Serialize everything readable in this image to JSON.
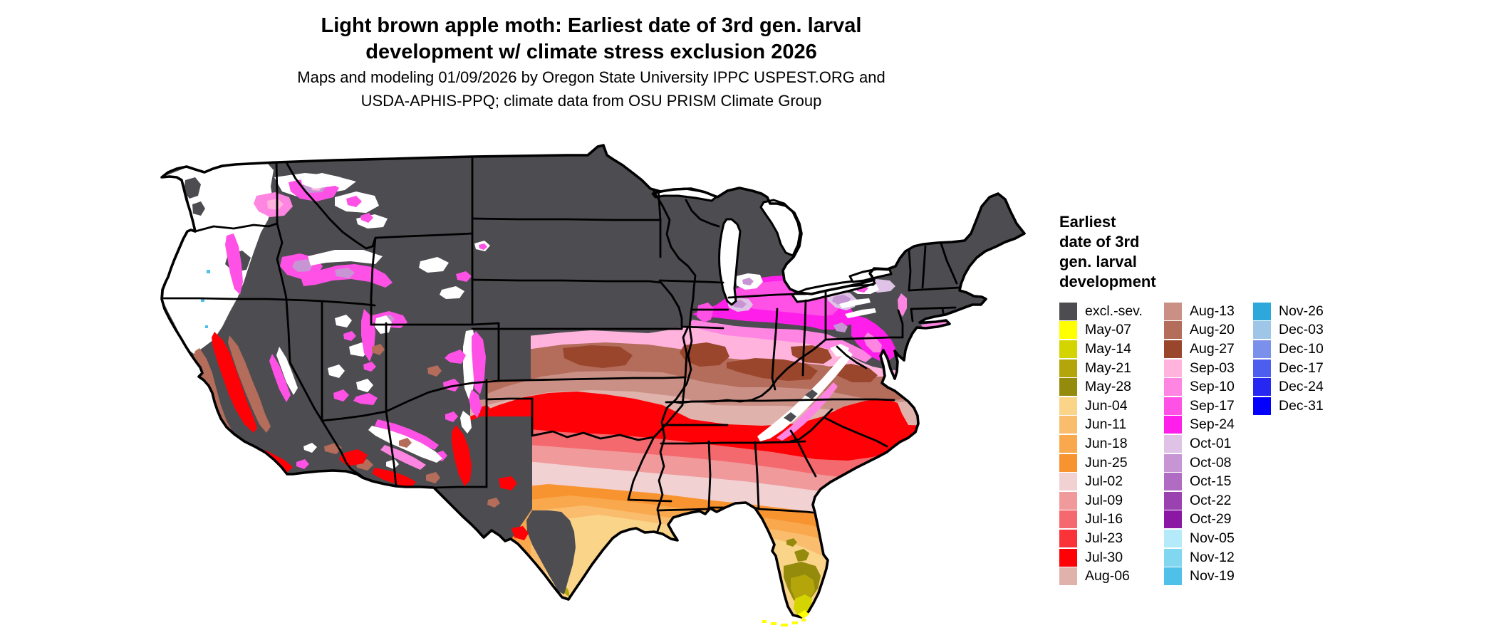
{
  "title": {
    "line1": "Light brown apple moth: Earliest date of 3rd gen. larval",
    "line2": "development w/ climate stress exclusion 2026"
  },
  "subtitle": {
    "line1": "Maps and modeling 01/09/2026 by Oregon State University IPPC USPEST.ORG and",
    "line2": "USDA-APHIS-PPQ; climate data from OSU PRISM Climate Group"
  },
  "legend": {
    "title_lines": [
      "Earliest",
      "date of 3rd",
      "gen. larval",
      "development"
    ],
    "columns": [
      [
        {
          "label": "excl.-sev.",
          "color": "#4D4D51"
        },
        {
          "label": "May-07",
          "color": "#FFFF00"
        },
        {
          "label": "May-14",
          "color": "#D4D400"
        },
        {
          "label": "May-21",
          "color": "#B3A50A"
        },
        {
          "label": "May-28",
          "color": "#948A0C"
        },
        {
          "label": "Jun-04",
          "color": "#FAD489"
        },
        {
          "label": "Jun-11",
          "color": "#FABD6E"
        },
        {
          "label": "Jun-18",
          "color": "#F9A84E"
        },
        {
          "label": "Jun-25",
          "color": "#F89430"
        },
        {
          "label": "Jul-02",
          "color": "#F2D1D2"
        },
        {
          "label": "Jul-09",
          "color": "#F09A9C"
        },
        {
          "label": "Jul-16",
          "color": "#F4696D"
        },
        {
          "label": "Jul-23",
          "color": "#F93338"
        },
        {
          "label": "Jul-30",
          "color": "#FE0005"
        },
        {
          "label": "Aug-06",
          "color": "#DFB2AB"
        }
      ],
      [
        {
          "label": "Aug-13",
          "color": "#CA9086"
        },
        {
          "label": "Aug-20",
          "color": "#B46C5B"
        },
        {
          "label": "Aug-27",
          "color": "#9A462D"
        },
        {
          "label": "Sep-03",
          "color": "#FFB3DD"
        },
        {
          "label": "Sep-10",
          "color": "#FF85E2"
        },
        {
          "label": "Sep-17",
          "color": "#FF51E6"
        },
        {
          "label": "Sep-24",
          "color": "#FF1EEA"
        },
        {
          "label": "Oct-01",
          "color": "#DEC3E6"
        },
        {
          "label": "Oct-08",
          "color": "#C895D4"
        },
        {
          "label": "Oct-15",
          "color": "#B06CC3"
        },
        {
          "label": "Oct-22",
          "color": "#9A42B0"
        },
        {
          "label": "Oct-29",
          "color": "#8B17A5"
        },
        {
          "label": "Nov-05",
          "color": "#B5EAFB"
        },
        {
          "label": "Nov-12",
          "color": "#81D6F0"
        },
        {
          "label": "Nov-19",
          "color": "#4FC0E8"
        }
      ],
      [
        {
          "label": "Nov-26",
          "color": "#2EA7DB"
        },
        {
          "label": "Dec-03",
          "color": "#A0C6E7"
        },
        {
          "label": "Dec-10",
          "color": "#7A90EA"
        },
        {
          "label": "Dec-17",
          "color": "#4C5EEE"
        },
        {
          "label": "Dec-24",
          "color": "#2727F2"
        },
        {
          "label": "Dec-31",
          "color": "#0300FE"
        }
      ]
    ]
  },
  "map": {
    "excluded_color": "#4D4D51",
    "no_data_color": "#FFFFFF",
    "boundary_color": "#000000",
    "background_color": "#FFFFFF"
  }
}
